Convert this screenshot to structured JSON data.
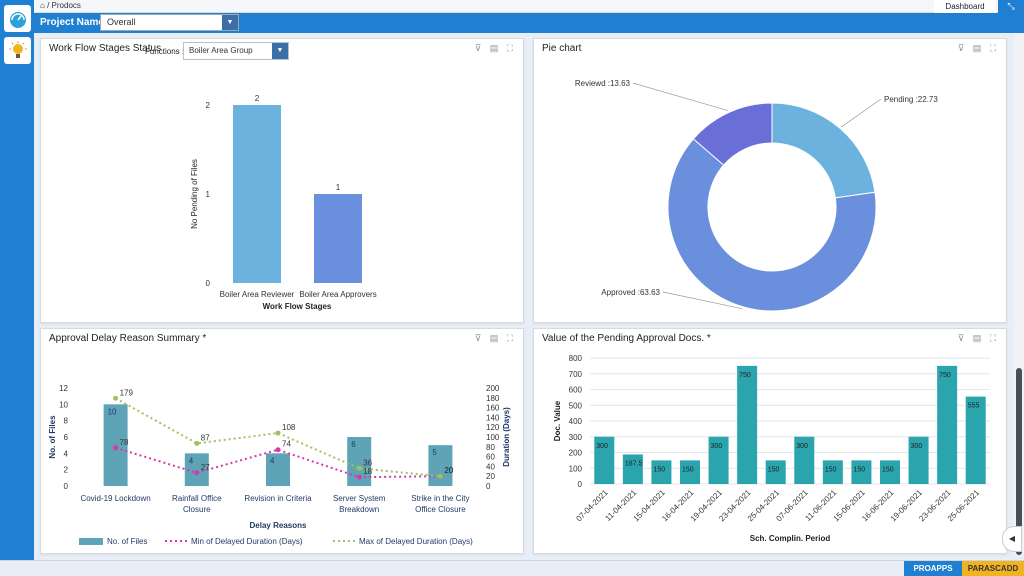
{
  "breadcrumb": {
    "home_icon": "home-icon",
    "separator": "/",
    "app": "Prodocs"
  },
  "header": {
    "dashboard_label": "Dashboard",
    "minimize_icon": "compress-icon"
  },
  "project": {
    "label": "Project Name :",
    "value": "Overall"
  },
  "sidebar": {
    "items": [
      {
        "icon": "dashboard-gauge-icon"
      },
      {
        "icon": "lightbulb-icon"
      }
    ]
  },
  "panels": {
    "workflow": {
      "title": "Work Flow Stages Status",
      "functions_label": "Functions :",
      "functions_value": "Boiler Area Group",
      "chart_data": {
        "type": "bar",
        "categories": [
          "Boiler Area Reviewer",
          "Boiler Area Approvers"
        ],
        "values": [
          2,
          1
        ],
        "xlabel": "Work Flow Stages",
        "ylabel": "No Pending of Files",
        "yticks": [
          0,
          1,
          2
        ],
        "colors": [
          "#6bb3de",
          "#6a8fdc"
        ]
      }
    },
    "pie": {
      "title": "Pie chart",
      "chart_data": {
        "type": "pie",
        "slices": [
          {
            "label": "Pending :22.73",
            "value": 22.73,
            "color": "#6bb3de"
          },
          {
            "label": "Approved :63.63",
            "value": 63.63,
            "color": "#6a8fdc"
          },
          {
            "label": "Reviewd :13.63",
            "value": 13.63,
            "color": "#6a6fd8"
          }
        ]
      }
    },
    "delay": {
      "title": "Approval Delay Reason Summary *",
      "chart_data": {
        "type": "bar",
        "categories": [
          "Covid-19 Lockdown",
          "Rainfall Office Closure",
          "Revision in Criteria",
          "Server System Breakdown",
          "Strike in the City Office Closure"
        ],
        "category_lines": [
          [
            "Covid-19 Lockdown"
          ],
          [
            "Rainfall Office",
            "Closure"
          ],
          [
            "Revision in Criteria"
          ],
          [
            "Server System",
            "Breakdown"
          ],
          [
            "Strike in the City",
            "Office Closure"
          ]
        ],
        "series": [
          {
            "name": "No. of Files",
            "values": [
              10,
              4,
              4,
              6,
              5
            ],
            "axis": "left"
          },
          {
            "name": "Min of Delayed Duration (Days)",
            "values": [
              78,
              27,
              74,
              18,
              20
            ],
            "axis": "right",
            "color": "#d63aa8"
          },
          {
            "name": "Max of Delayed Duration (Days)",
            "values": [
              179,
              87,
              108,
              36,
              20
            ],
            "axis": "right",
            "color": "#9cc45a"
          }
        ],
        "xlabel": "Delay Reasons",
        "ylabel": "No. of Files",
        "y2label": "Duration (Days)",
        "ylim": [
          0,
          12
        ],
        "yticks": [
          0,
          2,
          4,
          6,
          8,
          10,
          12
        ],
        "y2lim": [
          0,
          200
        ],
        "y2ticks": [
          0,
          20,
          40,
          60,
          80,
          100,
          120,
          140,
          160,
          180,
          200
        ]
      }
    },
    "pending_value": {
      "title": "Value of the Pending Approval Docs. *",
      "chart_data": {
        "type": "bar",
        "categories": [
          "07-04-2021",
          "11-04-2021",
          "15-04-2021",
          "16-04-2021",
          "19-04-2021",
          "23-04-2021",
          "25-04-2021",
          "07-06-2021",
          "11-06-2021",
          "15-06-2021",
          "16-06-2021",
          "19-06-2021",
          "23-06-2021",
          "25-06-2021"
        ],
        "values": [
          300,
          187.5,
          150,
          150,
          300,
          750,
          150,
          300,
          150,
          150,
          150,
          300,
          750,
          555
        ],
        "value_labels": [
          "300",
          "187.5",
          "150",
          "150",
          "300",
          "750",
          "150",
          "300",
          "150",
          "150",
          "150",
          "300",
          "750",
          "555"
        ],
        "xlabel": "Sch. Complin. Period",
        "ylabel": "Doc. Value",
        "ylim": [
          0,
          800
        ],
        "yticks": [
          0,
          100,
          200,
          300,
          400,
          500,
          600,
          700,
          800
        ]
      }
    }
  },
  "footer": {
    "brand_left": "PROAPPS",
    "brand_right": "PARASCADD"
  }
}
